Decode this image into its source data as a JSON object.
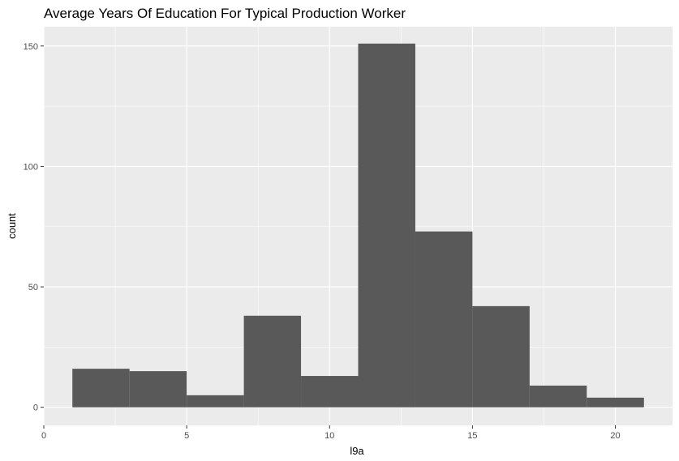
{
  "chart_data": {
    "type": "bar",
    "title": "Average Years Of Education For Typical Production Worker",
    "xlabel": "l9a",
    "ylabel": "count",
    "bin_edges": [
      1,
      3,
      5,
      7,
      9,
      11,
      13,
      15,
      17,
      19,
      21
    ],
    "values": [
      16,
      15,
      5,
      38,
      13,
      151,
      73,
      42,
      9,
      4
    ],
    "xlim": [
      0,
      22
    ],
    "ylim": [
      -7.5,
      158
    ],
    "x_ticks": [
      0,
      5,
      10,
      15,
      20
    ],
    "y_ticks": [
      0,
      50,
      100,
      150
    ],
    "x_tick_labels": [
      "0",
      "5",
      "10",
      "15",
      "20"
    ],
    "y_tick_labels": [
      "0",
      "50",
      "100",
      "150"
    ],
    "grid": true,
    "colors": {
      "panel_background": "#ebebeb",
      "grid": "#ffffff",
      "bar_fill": "#595959"
    }
  }
}
